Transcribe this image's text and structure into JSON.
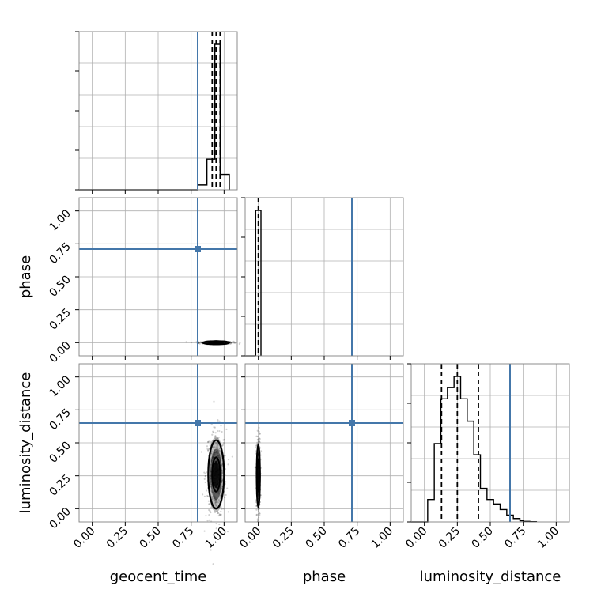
{
  "colors": {
    "truth": "#4477aa",
    "hist": "#000000",
    "grid": "#b0b0b0"
  },
  "chart_data": {
    "type": "corner",
    "parameters": [
      "geocent_time",
      "phase",
      "luminosity_distance"
    ],
    "axis_range": [
      -0.1,
      1.1
    ],
    "tick_values": [
      0.0,
      0.25,
      0.5,
      0.75,
      1.0
    ],
    "tick_labels": [
      "0.00",
      "0.25",
      "0.50",
      "0.75",
      "1.00"
    ],
    "truths": {
      "geocent_time": 0.8,
      "phase": 0.71,
      "luminosity_distance": 0.65
    },
    "quantiles": {
      "geocent_time": [
        0.91,
        0.94,
        0.97
      ],
      "phase": [
        0.0
      ],
      "luminosity_distance": [
        0.13,
        0.25,
        0.41
      ]
    },
    "histograms": {
      "geocent_time": {
        "bin_edges": [
          0.8,
          0.87,
          0.93,
          0.97,
          1.04
        ],
        "counts": [
          6,
          38,
          180,
          19
        ]
      },
      "phase": {
        "bin_edges": [
          -0.02,
          0.0,
          0.02
        ],
        "counts": [
          100,
          100
        ]
      },
      "luminosity_distance": {
        "bin_edges": [
          0.0,
          0.025,
          0.05,
          0.075,
          0.1,
          0.125,
          0.15,
          0.175,
          0.2,
          0.225,
          0.25,
          0.275,
          0.3,
          0.325,
          0.35,
          0.375,
          0.4,
          0.425,
          0.45,
          0.475,
          0.5,
          0.525,
          0.55,
          0.575,
          0.6,
          0.625,
          0.65,
          0.675,
          0.7,
          0.725,
          0.75,
          0.8,
          0.85
        ],
        "counts": [
          0,
          2,
          2,
          7,
          7,
          11,
          11,
          12,
          12,
          13,
          13,
          11,
          11,
          9,
          9,
          6,
          6,
          3,
          3,
          2,
          2,
          1.6,
          1.6,
          1.1,
          1.1,
          0.6,
          0.6,
          0.3,
          0.3,
          0.1,
          0.05,
          0.02
        ]
      }
    },
    "scatter": {
      "geocent_time_vs_phase": {
        "center": [
          0.94,
          0.0
        ],
        "spread": [
          0.05,
          0.004
        ],
        "n": 260
      },
      "geocent_time_vs_luminosity_distance": {
        "center": [
          0.94,
          0.26
        ],
        "spread": [
          0.03,
          0.13
        ],
        "n": 420
      },
      "phase_vs_luminosity_distance": {
        "center": [
          0.0,
          0.25
        ],
        "spread": [
          0.006,
          0.12
        ],
        "n": 320
      }
    }
  }
}
